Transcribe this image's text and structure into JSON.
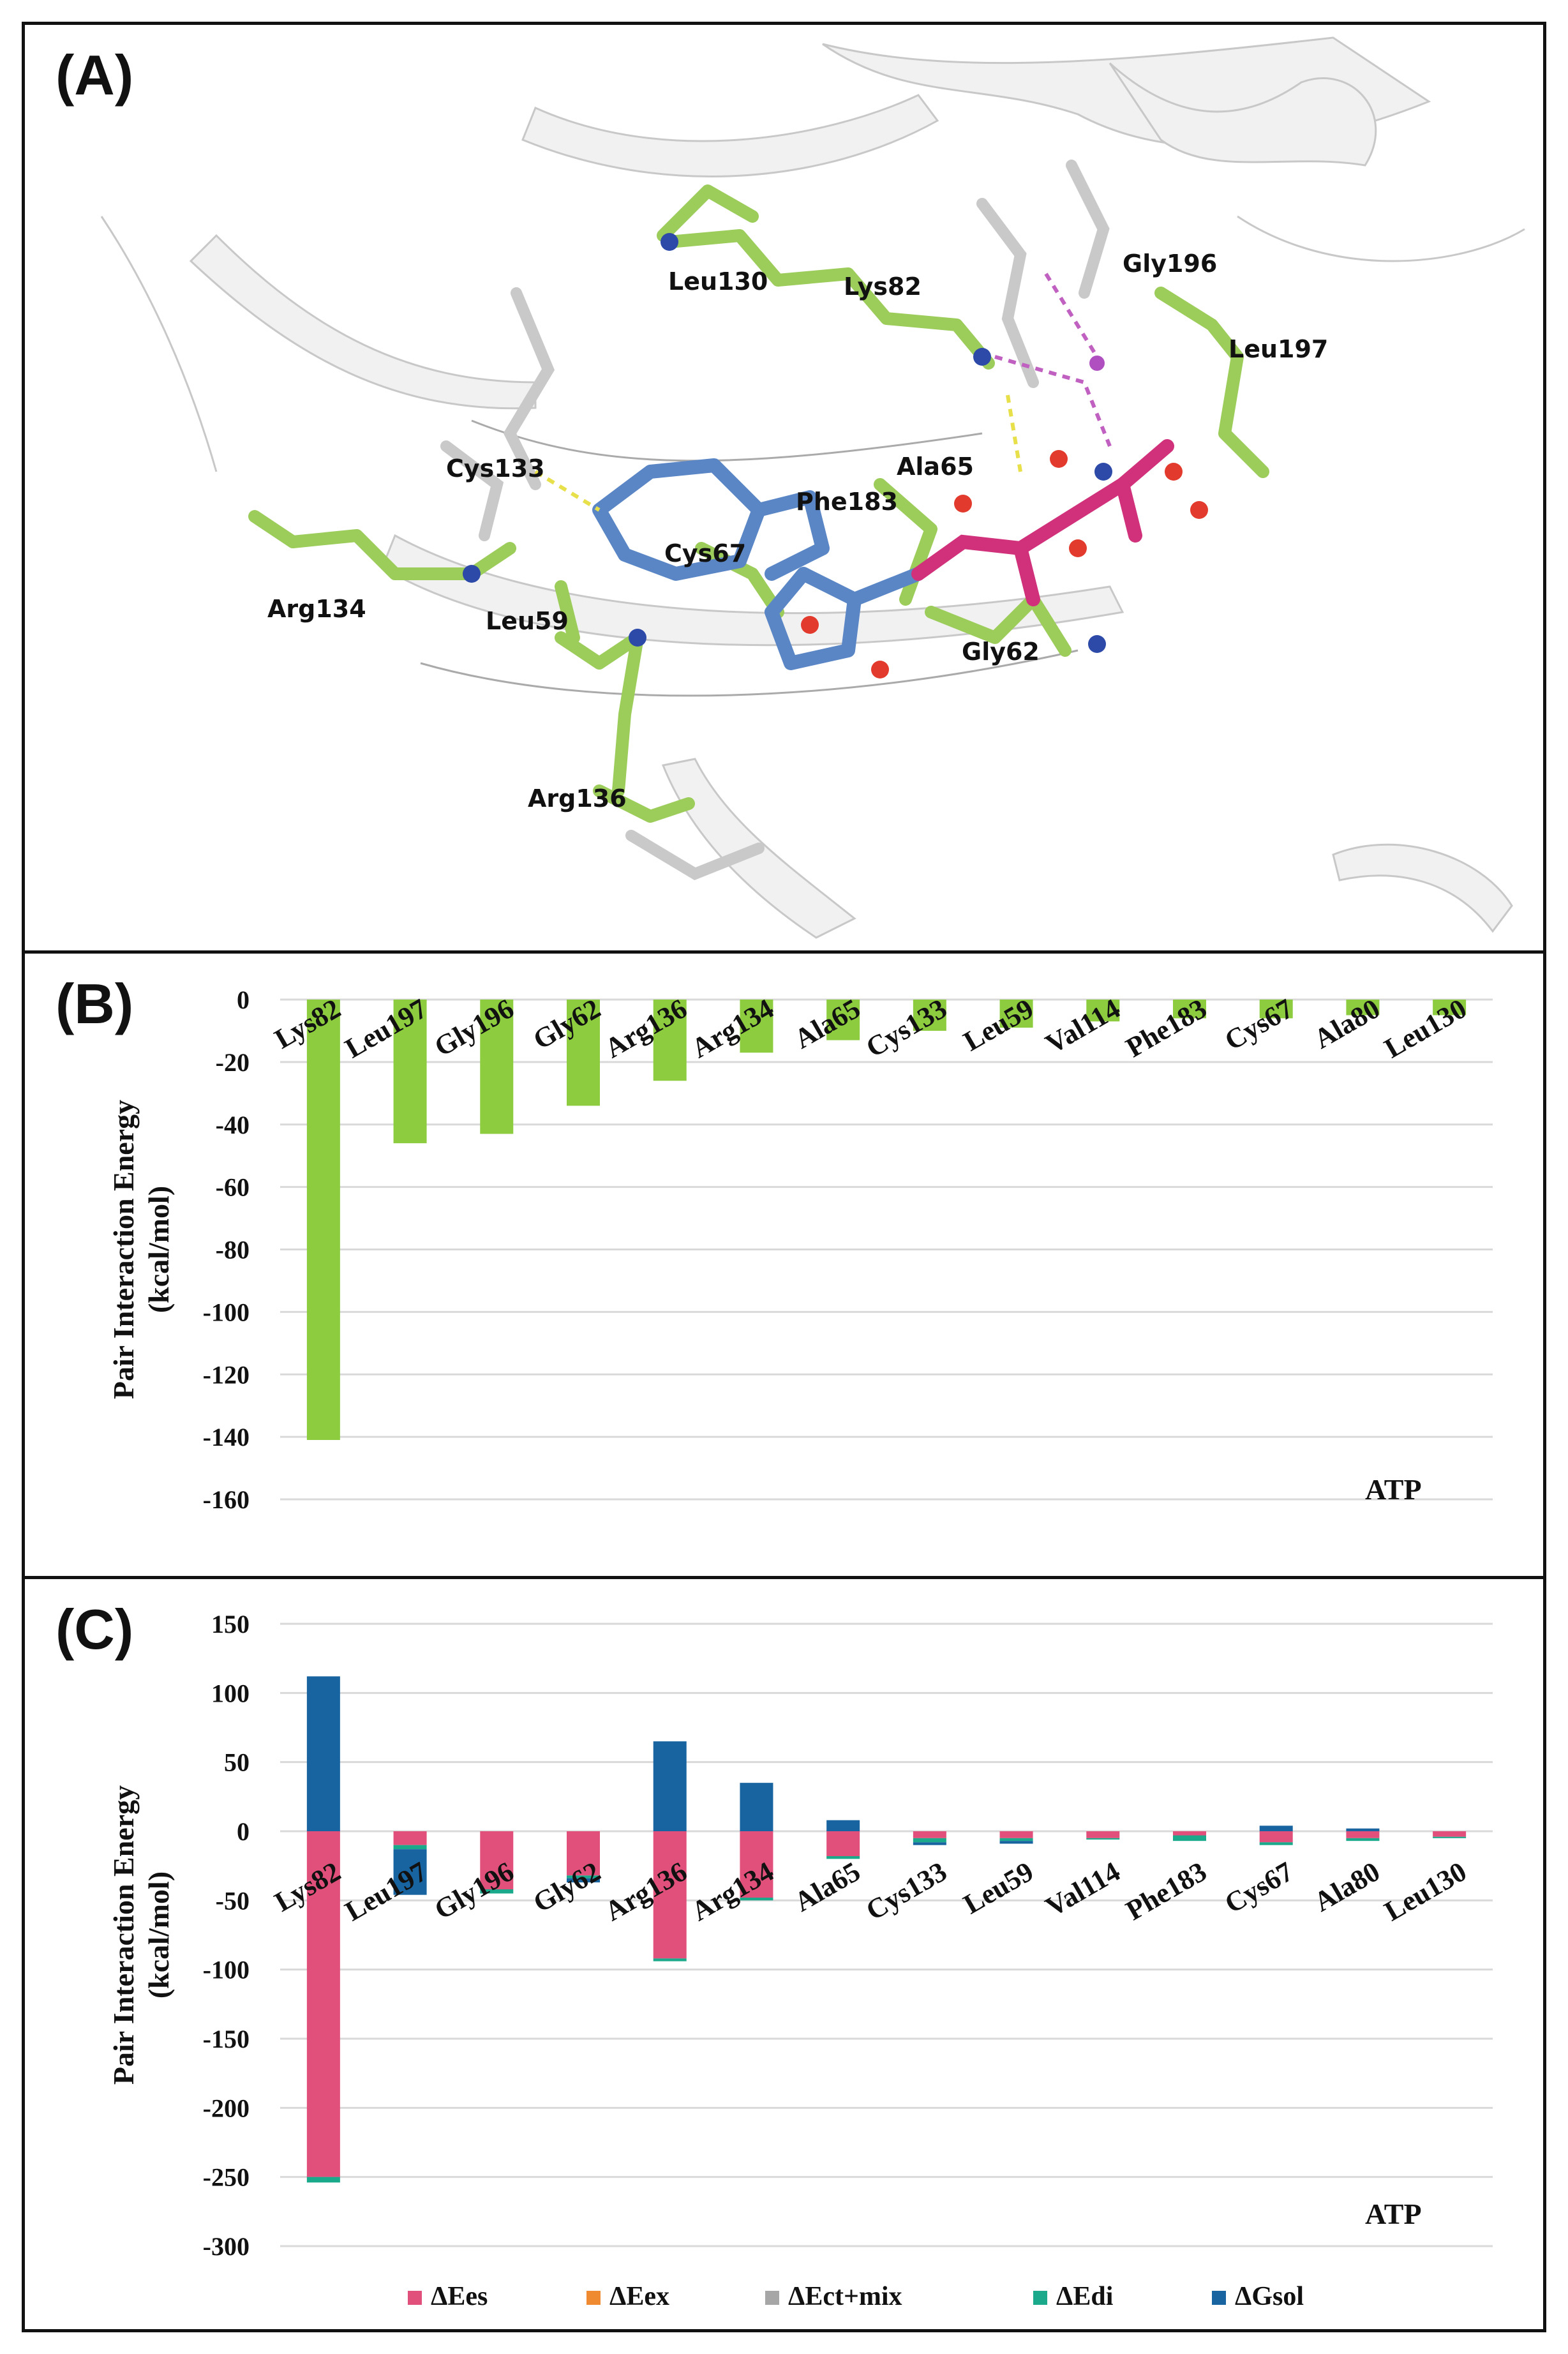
{
  "panels": {
    "a": {
      "label": "(A)",
      "residue_labels": [
        "Leu130",
        "Lys82",
        "Gly196",
        "Leu197",
        "Cys133",
        "Ala65",
        "Phe183",
        "Arg134",
        "Cys67",
        "Leu59",
        "Gly62",
        "Arg136"
      ]
    },
    "b": {
      "label": "(B)"
    },
    "c": {
      "label": "(C)"
    }
  },
  "colors": {
    "total_bar": "#8ccc3e",
    "es": "#e0507a",
    "ex": "#f08a30",
    "ctmix": "#a6a6a6",
    "di": "#1aa98a",
    "gsol": "#1764a0",
    "grid": "#d9d9d9"
  },
  "chart_data": [
    {
      "type": "bar",
      "panel": "B",
      "title": "",
      "annotation": "ATP",
      "ylabel": "Pair Interaction Energy (kcal/mol)",
      "ylabel_lines": [
        "Pair Interaction Energy",
        "(kcal/mol)"
      ],
      "ylim": [
        -160,
        0
      ],
      "yticks": [
        0,
        -20,
        -40,
        -60,
        -80,
        -100,
        -120,
        -140,
        -160
      ],
      "grid": true,
      "categories": [
        "Lys82",
        "Leu197",
        "Gly196",
        "Gly62",
        "Arg136",
        "Arg134",
        "Ala65",
        "Cys133",
        "Leu59",
        "Val114",
        "Phe183",
        "Cys67",
        "Ala80",
        "Leu130"
      ],
      "values": [
        -141,
        -46,
        -43,
        -34,
        -26,
        -17,
        -13,
        -10,
        -9,
        -7,
        -6,
        -6,
        -5,
        -5
      ]
    },
    {
      "type": "bar",
      "stacked": true,
      "panel": "C",
      "title": "",
      "annotation": "ATP",
      "ylabel": "Pair Interaction Energy (kcal/mol)",
      "ylabel_lines": [
        "Pair Interaction Energy",
        "(kcal/mol)"
      ],
      "ylim": [
        -300,
        150
      ],
      "yticks": [
        150,
        100,
        50,
        0,
        -50,
        -100,
        -150,
        -200,
        -250,
        -300
      ],
      "grid": true,
      "legend": "bottom",
      "categories": [
        "Lys82",
        "Leu197",
        "Gly196",
        "Gly62",
        "Arg136",
        "Arg134",
        "Ala65",
        "Cys133",
        "Leu59",
        "Val114",
        "Phe183",
        "Cys67",
        "Ala80",
        "Leu130"
      ],
      "series": [
        {
          "name": "ΔEes",
          "values": [
            -250,
            -10,
            -42,
            -32,
            -92,
            -48,
            -18,
            -5,
            -5,
            -5,
            -3,
            -8,
            -5,
            -4
          ]
        },
        {
          "name": "ΔEex",
          "values": [
            0,
            0,
            0,
            0,
            0,
            0,
            0,
            0,
            0,
            0,
            0,
            0,
            0,
            0
          ]
        },
        {
          "name": "ΔEct+mix",
          "values": [
            0,
            0,
            0,
            0,
            0,
            0,
            0,
            0,
            0,
            0,
            0,
            0,
            0,
            0
          ]
        },
        {
          "name": "ΔEdi",
          "values": [
            -4,
            -3,
            -3,
            -2,
            -2,
            -2,
            -2,
            -3,
            -2,
            -1,
            -4,
            -2,
            -2,
            -1
          ]
        },
        {
          "name": "ΔGsol",
          "values": [
            112,
            -33,
            0,
            -3,
            65,
            35,
            8,
            -2,
            -2,
            0,
            0,
            4,
            2,
            0
          ]
        }
      ]
    }
  ]
}
